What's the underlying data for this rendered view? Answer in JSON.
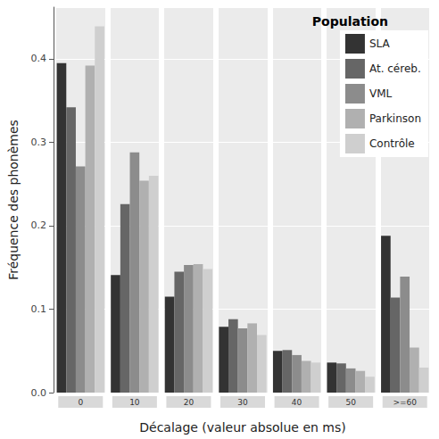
{
  "chart_data": {
    "type": "bar",
    "x_label": "Décalage (valeur absolue en ms)",
    "y_label": "Fréquence des phonèmes",
    "legend_title": "Population",
    "legend": "top-right",
    "grid": true,
    "categories": [
      "0",
      "10",
      "20",
      "30",
      "40",
      "50",
      ">=60"
    ],
    "series": [
      {
        "name": "SLA",
        "color": "#333333",
        "values": [
          0.395,
          0.141,
          0.115,
          0.079,
          0.05,
          0.036,
          0.188
        ]
      },
      {
        "name": "At. céreb.",
        "color": "#666666",
        "values": [
          0.342,
          0.226,
          0.145,
          0.088,
          0.051,
          0.035,
          0.114
        ]
      },
      {
        "name": "VML",
        "color": "#8c8c8c",
        "values": [
          0.271,
          0.288,
          0.153,
          0.077,
          0.045,
          0.029,
          0.139
        ]
      },
      {
        "name": "Parkinson",
        "color": "#b0b0b0",
        "values": [
          0.392,
          0.254,
          0.154,
          0.083,
          0.038,
          0.026,
          0.054
        ]
      },
      {
        "name": "Contrôle",
        "color": "#cfcfcf",
        "values": [
          0.439,
          0.26,
          0.148,
          0.069,
          0.036,
          0.019,
          0.03
        ]
      }
    ],
    "ylim": [
      0,
      0.462
    ],
    "yticks": [
      {
        "value": 0,
        "label": "0.0"
      },
      0.1,
      0.2,
      0.3,
      0.4
    ]
  }
}
